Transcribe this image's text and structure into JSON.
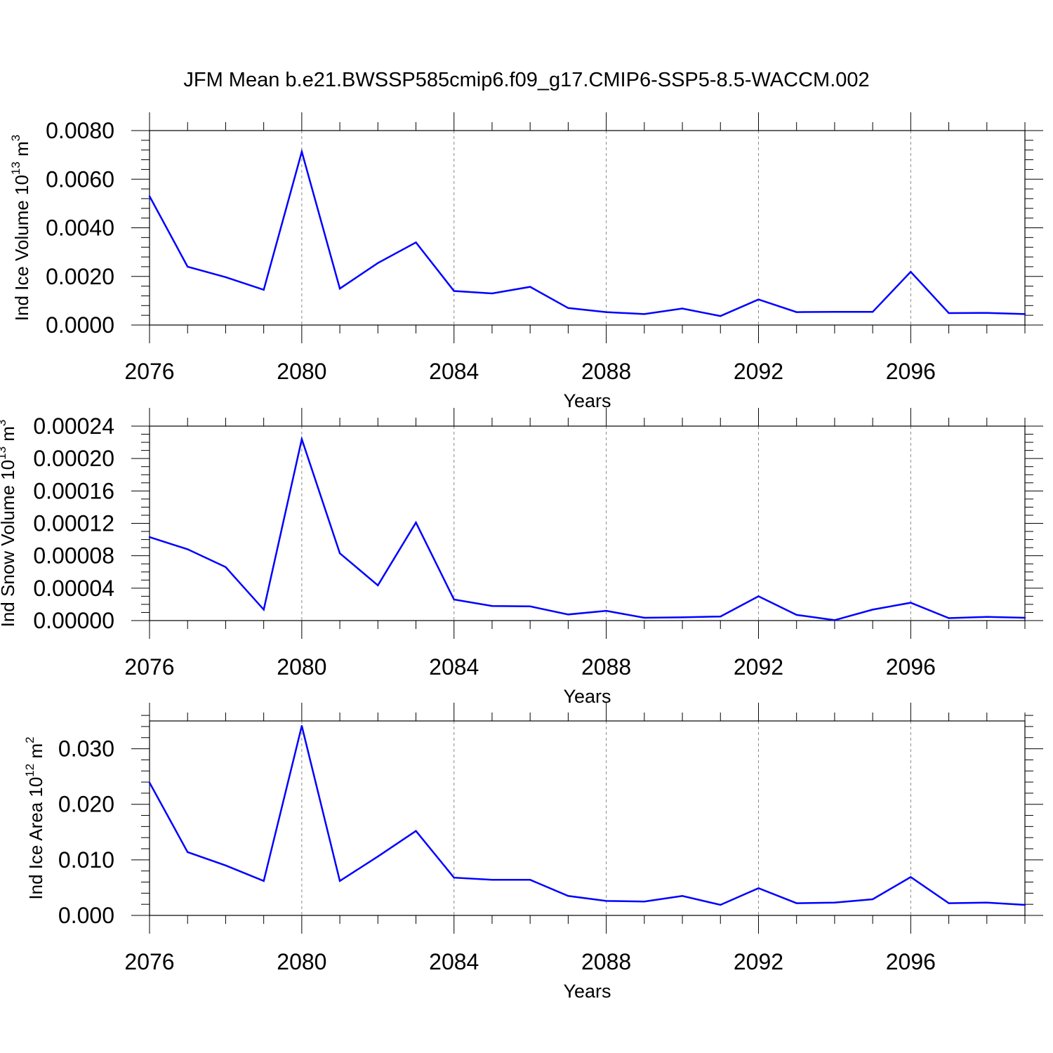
{
  "title": "JFM Mean b.e21.BWSSP585cmip6.f09_g17.CMIP6-SSP5-8.5-WACCM.002",
  "colors": {
    "line": "#0000ff",
    "axis": "#000000",
    "grid": "#888888"
  },
  "chart_data": [
    {
      "type": "line",
      "ylabel": {
        "text": "Ind Ice Volume 10",
        "exp": "13",
        "unit": " m",
        "unit_exp": "3"
      },
      "xlabel": "Years",
      "xlim": [
        2076,
        2099
      ],
      "ylim": [
        0,
        0.008
      ],
      "x_ticks": [
        2076,
        2080,
        2084,
        2088,
        2092,
        2096
      ],
      "x_tick_labels": [
        "2076",
        "2080",
        "2084",
        "2088",
        "2092",
        "2096"
      ],
      "y_ticks": [
        0,
        0.002,
        0.004,
        0.006,
        0.008
      ],
      "y_tick_labels": [
        "0.0000",
        "0.0020",
        "0.0040",
        "0.0060",
        "0.0080"
      ],
      "y_minor_step": 0.0004,
      "x": [
        2076,
        2077,
        2078,
        2079,
        2080,
        2081,
        2082,
        2083,
        2084,
        2085,
        2086,
        2087,
        2088,
        2089,
        2090,
        2091,
        2092,
        2093,
        2094,
        2095,
        2096,
        2097,
        2098,
        2099
      ],
      "values": [
        0.0053,
        0.0024,
        0.00197,
        0.00145,
        0.00713,
        0.0015,
        0.00255,
        0.0034,
        0.0014,
        0.0013,
        0.00157,
        0.0007,
        0.00053,
        0.00045,
        0.00068,
        0.00037,
        0.00105,
        0.00053,
        0.00054,
        0.00054,
        0.00219,
        0.00049,
        0.0005,
        0.00045
      ]
    },
    {
      "type": "line",
      "ylabel": {
        "text": "Ind Snow Volume 10",
        "exp": "13",
        "unit": " m",
        "unit_exp": "3"
      },
      "xlabel": "Years",
      "xlim": [
        2076,
        2099
      ],
      "ylim": [
        0,
        0.00024
      ],
      "x_ticks": [
        2076,
        2080,
        2084,
        2088,
        2092,
        2096
      ],
      "x_tick_labels": [
        "2076",
        "2080",
        "2084",
        "2088",
        "2092",
        "2096"
      ],
      "y_ticks": [
        0,
        4e-05,
        8e-05,
        0.00012,
        0.00016,
        0.0002,
        0.00024
      ],
      "y_tick_labels": [
        "0.00000",
        "0.00004",
        "0.00008",
        "0.00012",
        "0.00016",
        "0.00020",
        "0.00024"
      ],
      "y_minor_step": 1e-05,
      "x": [
        2076,
        2077,
        2078,
        2079,
        2080,
        2081,
        2082,
        2083,
        2084,
        2085,
        2086,
        2087,
        2088,
        2089,
        2090,
        2091,
        2092,
        2093,
        2094,
        2095,
        2096,
        2097,
        2098,
        2099
      ],
      "values": [
        0.000103,
        8.8e-05,
        6.6e-05,
        1.35e-05,
        0.000224,
        8.3e-05,
        4.35e-05,
        0.000121,
        2.6e-05,
        1.8e-05,
        1.75e-05,
        7.5e-06,
        1.2e-05,
        3.5e-06,
        4e-06,
        5e-06,
        3e-05,
        7e-06,
        5e-07,
        1.35e-05,
        2.2e-05,
        3e-06,
        4.5e-06,
        3.5e-06
      ]
    },
    {
      "type": "line",
      "ylabel": {
        "text": "Ind Ice Area 10",
        "exp": "12",
        "unit": " m",
        "unit_exp": "2"
      },
      "xlabel": "Years",
      "xlim": [
        2076,
        2099
      ],
      "ylim": [
        0,
        0.035
      ],
      "x_ticks": [
        2076,
        2080,
        2084,
        2088,
        2092,
        2096
      ],
      "x_tick_labels": [
        "2076",
        "2080",
        "2084",
        "2088",
        "2092",
        "2096"
      ],
      "y_ticks": [
        0,
        0.01,
        0.02,
        0.03
      ],
      "y_tick_labels": [
        "0.000",
        "0.010",
        "0.020",
        "0.030"
      ],
      "y_minor_step": 0.002,
      "x": [
        2076,
        2077,
        2078,
        2079,
        2080,
        2081,
        2082,
        2083,
        2084,
        2085,
        2086,
        2087,
        2088,
        2089,
        2090,
        2091,
        2092,
        2093,
        2094,
        2095,
        2096,
        2097,
        2098,
        2099
      ],
      "values": [
        0.0239,
        0.0114,
        0.009,
        0.0062,
        0.0341,
        0.0062,
        0.0106,
        0.0152,
        0.0068,
        0.0064,
        0.0064,
        0.0035,
        0.0026,
        0.0025,
        0.0035,
        0.0019,
        0.0049,
        0.0022,
        0.0023,
        0.0029,
        0.0069,
        0.0022,
        0.0023,
        0.0019
      ]
    }
  ]
}
